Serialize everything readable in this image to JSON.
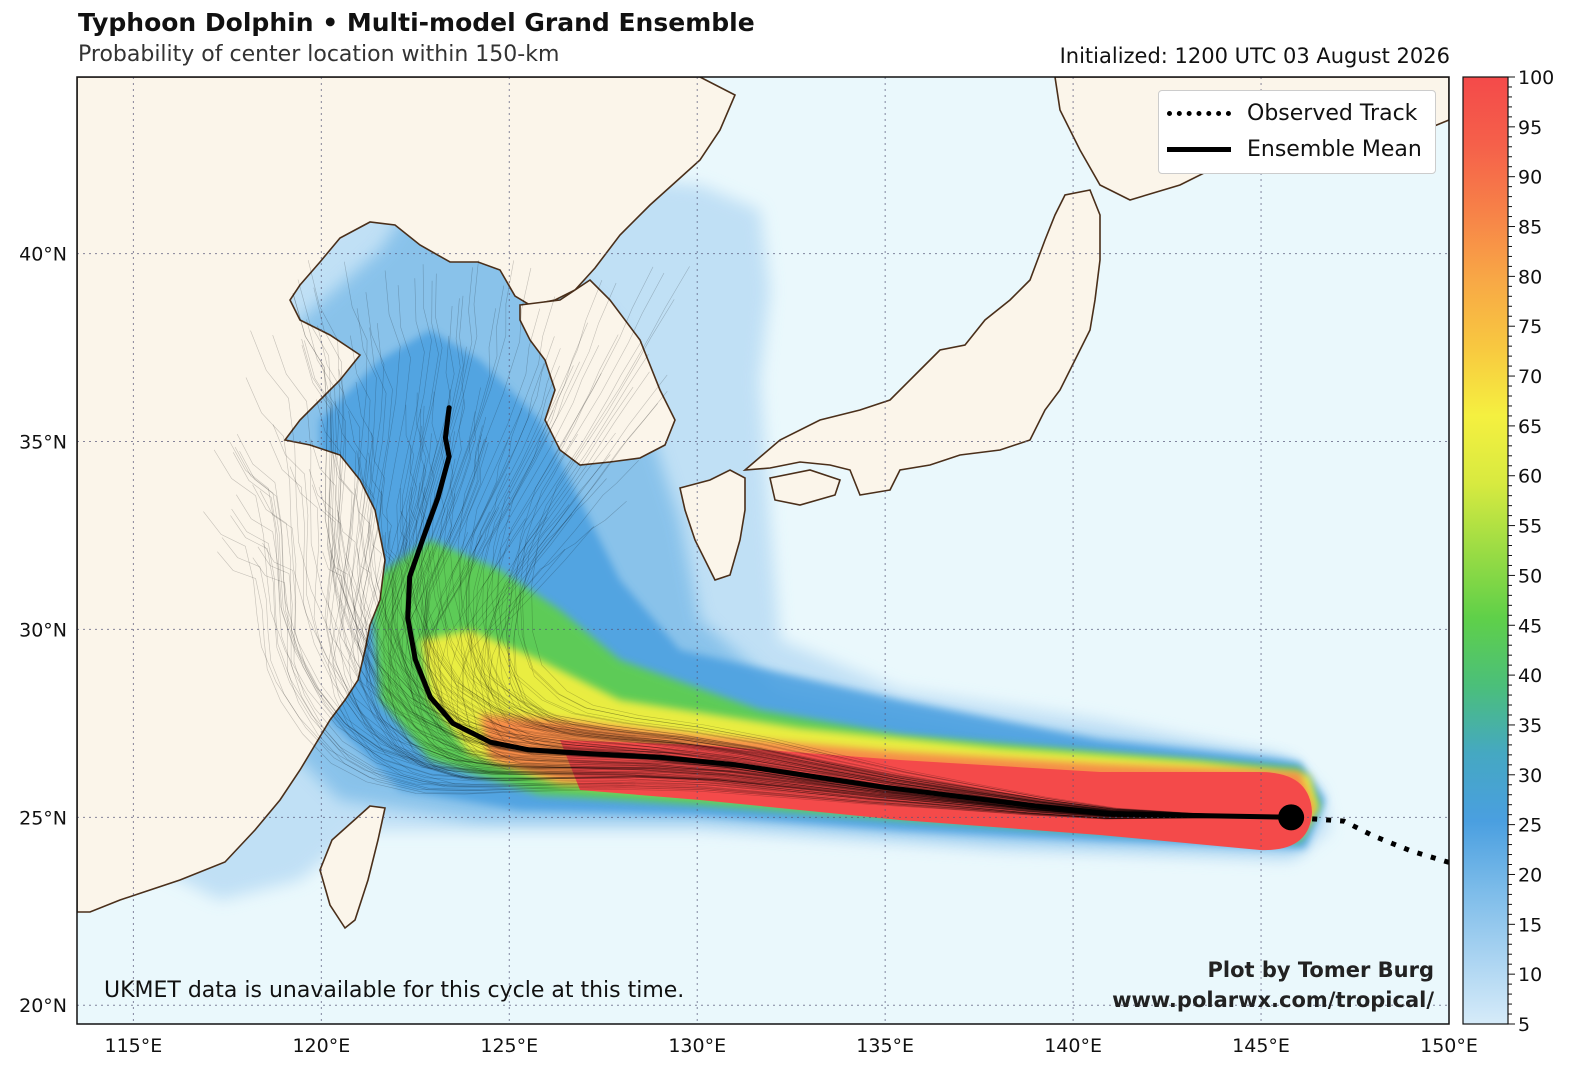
{
  "header": {
    "title": "Typhoon Dolphin • Multi-model Grand Ensemble",
    "subtitle": "Probability of center location within 150-km",
    "initialized": "Initialized: 1200 UTC 03 August 2026"
  },
  "legend": {
    "observed": "Observed Track",
    "mean": "Ensemble Mean"
  },
  "credits": {
    "line1": "Plot by Tomer Burg",
    "line2": "www.polarwx.com/tropical/"
  },
  "note": "UKMET data is unavailable for this cycle at this time.",
  "map_data": {
    "lon_range": [
      113.5,
      150
    ],
    "lat_range": [
      19.5,
      44.7
    ],
    "lon_ticks": [
      "115°E",
      "120°E",
      "125°E",
      "130°E",
      "135°E",
      "140°E",
      "145°E",
      "150°E"
    ],
    "lat_ticks": [
      "20°N",
      "25°N",
      "30°N",
      "35°N",
      "40°N"
    ],
    "storm_position": {
      "lon": 145.8,
      "lat": 25.0
    },
    "ensemble_mean_track": [
      [
        145.8,
        25.0
      ],
      [
        143,
        25.05
      ],
      [
        141,
        25.1
      ],
      [
        139,
        25.3
      ],
      [
        137,
        25.55
      ],
      [
        135,
        25.8
      ],
      [
        133,
        26.1
      ],
      [
        131,
        26.4
      ],
      [
        129,
        26.6
      ],
      [
        127,
        26.7
      ],
      [
        125.5,
        26.8
      ],
      [
        124.5,
        27.0
      ],
      [
        123.5,
        27.5
      ],
      [
        122.9,
        28.2
      ],
      [
        122.5,
        29.2
      ],
      [
        122.3,
        30.3
      ],
      [
        122.35,
        31.4
      ],
      [
        122.7,
        32.4
      ],
      [
        123.1,
        33.5
      ],
      [
        123.4,
        34.6
      ],
      [
        123.3,
        35.1
      ],
      [
        123.4,
        35.9
      ]
    ],
    "observed_track": [
      [
        150,
        23.8
      ],
      [
        149,
        24.1
      ],
      [
        148,
        24.5
      ],
      [
        147.2,
        24.9
      ],
      [
        145.8,
        25.0
      ]
    ],
    "colorbar": {
      "min": 5,
      "max": 100,
      "ticks": [
        "5",
        "10",
        "15",
        "20",
        "25",
        "30",
        "35",
        "40",
        "45",
        "50",
        "55",
        "60",
        "65",
        "70",
        "75",
        "80",
        "85",
        "90",
        "95",
        "100"
      ],
      "colors": [
        "#d6ebf9",
        "#a9d3f1",
        "#7bbbe9",
        "#4a9fe0",
        "#45a8c2",
        "#4bbf7a",
        "#5fd049",
        "#9bdc44",
        "#d8ea40",
        "#f5f040",
        "#f8c840",
        "#f8a846",
        "#f78248",
        "#f5604a",
        "#f44a4a"
      ]
    },
    "colors": {
      "land": "#fbf5ea",
      "ocean": "#eaf8fc",
      "coast": "#4a2f1a",
      "track": "#000000"
    }
  }
}
